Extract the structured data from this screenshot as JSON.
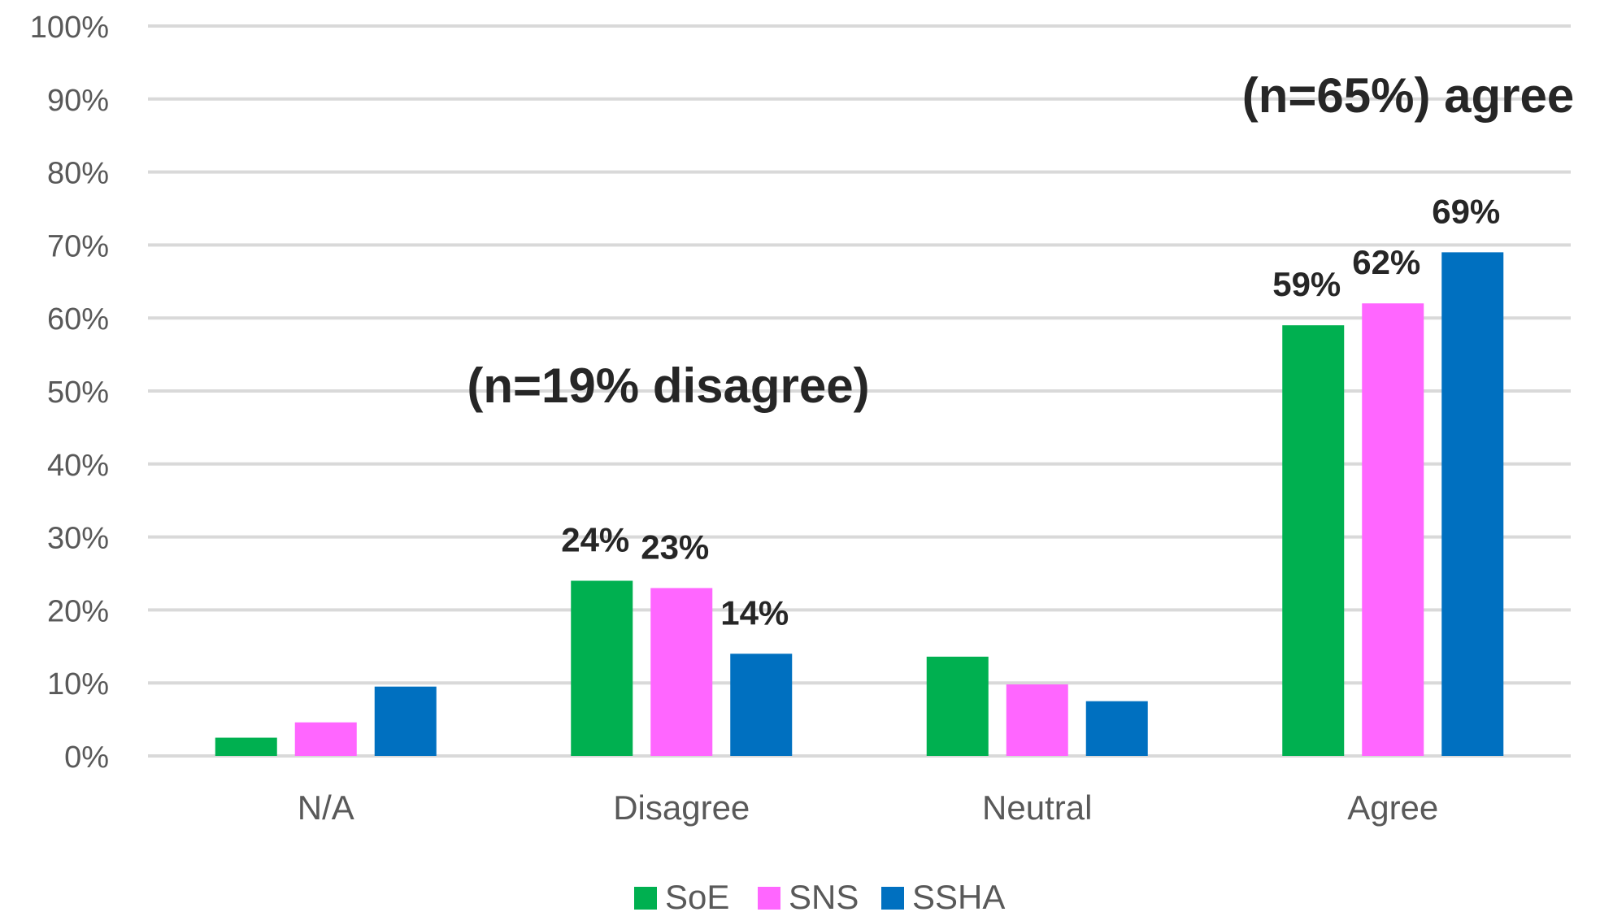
{
  "chart_data": {
    "type": "bar",
    "categories": [
      "N/A",
      "Disagree",
      "Neutral",
      "Agree"
    ],
    "series": [
      {
        "name": "SoE",
        "color": "#00b050",
        "values": [
          2.5,
          24,
          13.6,
          59
        ],
        "labels": [
          "",
          "24%",
          "",
          "59%"
        ]
      },
      {
        "name": "SNS",
        "color": "#ff66ff",
        "values": [
          4.6,
          23,
          9.8,
          62
        ],
        "labels": [
          "",
          "23%",
          "",
          "62%"
        ]
      },
      {
        "name": "SSHA",
        "color": "#0070c0",
        "values": [
          9.5,
          14,
          7.5,
          69
        ],
        "labels": [
          "",
          "14%",
          "",
          "69%"
        ]
      }
    ],
    "ylim": [
      0,
      100
    ],
    "yticks": [
      0,
      10,
      20,
      30,
      40,
      50,
      60,
      70,
      80,
      90,
      100
    ],
    "ytick_labels": [
      "0%",
      "10%",
      "20%",
      "30%",
      "40%",
      "50%",
      "60%",
      "70%",
      "80%",
      "90%",
      "100%"
    ],
    "grid": true,
    "legend_position": "bottom-center",
    "annotations": [
      {
        "text": "(n=19% disagree)",
        "near_category": "Disagree"
      },
      {
        "text": "(n=65%) agree",
        "near_category": "Agree"
      }
    ]
  }
}
